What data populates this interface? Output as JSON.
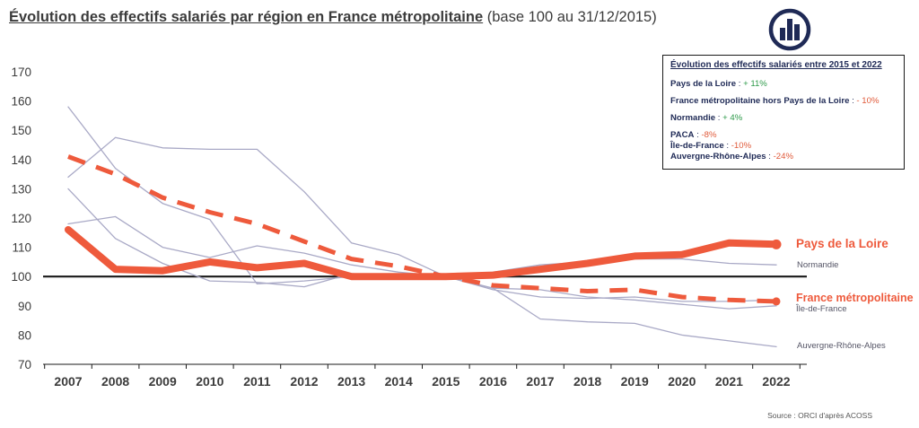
{
  "header": {
    "title_main": "Évolution des effectifs salariés par région en France métropolitaine",
    "title_sub": " (base 100 au 31/12/2015)"
  },
  "source": "Source : ORCI d'après ACOSS",
  "info_box": {
    "title": "Évolution des effectifs salariés entre 2015 et 2022",
    "rows": [
      {
        "label": "Pays de la Loire",
        "sep": " : ",
        "value": "+ 11%",
        "sign": "pos"
      },
      {
        "label": "France métropolitaine hors Pays de la Loire",
        "sep": " : ",
        "value": "- 10%",
        "sign": "neg"
      },
      {
        "label": "Normandie",
        "sep": " : ",
        "value": "+ 4%",
        "sign": "pos"
      },
      {
        "label": "PACA",
        "sep": " : ",
        "value": "-8%",
        "sign": "neg"
      },
      {
        "label": "Île-de-France",
        "sep": " : ",
        "value": "-10%",
        "sign": "neg"
      },
      {
        "label": "Auvergne-Rhône-Alpes",
        "sep": " : ",
        "value": "-24%",
        "sign": "neg"
      }
    ]
  },
  "colors": {
    "accent": "#ee5a3c",
    "regions": "#a9a9c6",
    "axis": "#1a1a1a",
    "text": "#3b3b3b",
    "navy": "#1f2a56"
  },
  "chart_data": {
    "type": "line",
    "x": [
      "2007",
      "2008",
      "2009",
      "2010",
      "2011",
      "2012",
      "2013",
      "2014",
      "2015",
      "2016",
      "2017",
      "2018",
      "2019",
      "2020",
      "2021",
      "2022"
    ],
    "ylim": [
      70,
      170
    ],
    "yticks": [
      "70",
      "80",
      "90",
      "100",
      "110",
      "120",
      "130",
      "140",
      "150",
      "160",
      "170"
    ],
    "reference_line": 100,
    "grid": false,
    "series": [
      {
        "name": "Pays de la Loire",
        "style": "bold",
        "values": [
          116,
          102.5,
          102,
          105,
          103,
          104.5,
          100,
          100,
          100,
          100.5,
          102.5,
          104.5,
          107,
          107.5,
          111.5,
          111
        ]
      },
      {
        "name": "France métropolitaine",
        "style": "dashed",
        "values": [
          141,
          135,
          127,
          122,
          118,
          112,
          106,
          103.5,
          100,
          97,
          96,
          95,
          95.5,
          93,
          92,
          91.5
        ]
      },
      {
        "name": "Normandie",
        "style": "thin",
        "values": [
          118,
          120.5,
          110,
          106.5,
          110.5,
          108,
          104,
          101.5,
          100,
          101.5,
          104,
          105,
          106,
          106,
          104.5,
          104
        ]
      },
      {
        "name": "Île-de-France",
        "style": "thin",
        "values": [
          130,
          113,
          104.5,
          98.5,
          98,
          96.5,
          101,
          100,
          100,
          96,
          95.5,
          93,
          92,
          90.5,
          89,
          90
        ]
      },
      {
        "name": "Auvergne-Rhône-Alpes",
        "style": "thin",
        "values": [
          158,
          137,
          125,
          119.5,
          97.5,
          98.5,
          100,
          100,
          100,
          96,
          85.5,
          84.5,
          84,
          80,
          78,
          76
        ]
      },
      {
        "name": "",
        "style": "thin",
        "values": [
          134,
          147.5,
          144,
          143.5,
          143.5,
          129,
          111.5,
          107.5,
          100,
          95.5,
          93,
          92.5,
          93,
          91.5,
          91.5,
          92
        ]
      }
    ]
  }
}
